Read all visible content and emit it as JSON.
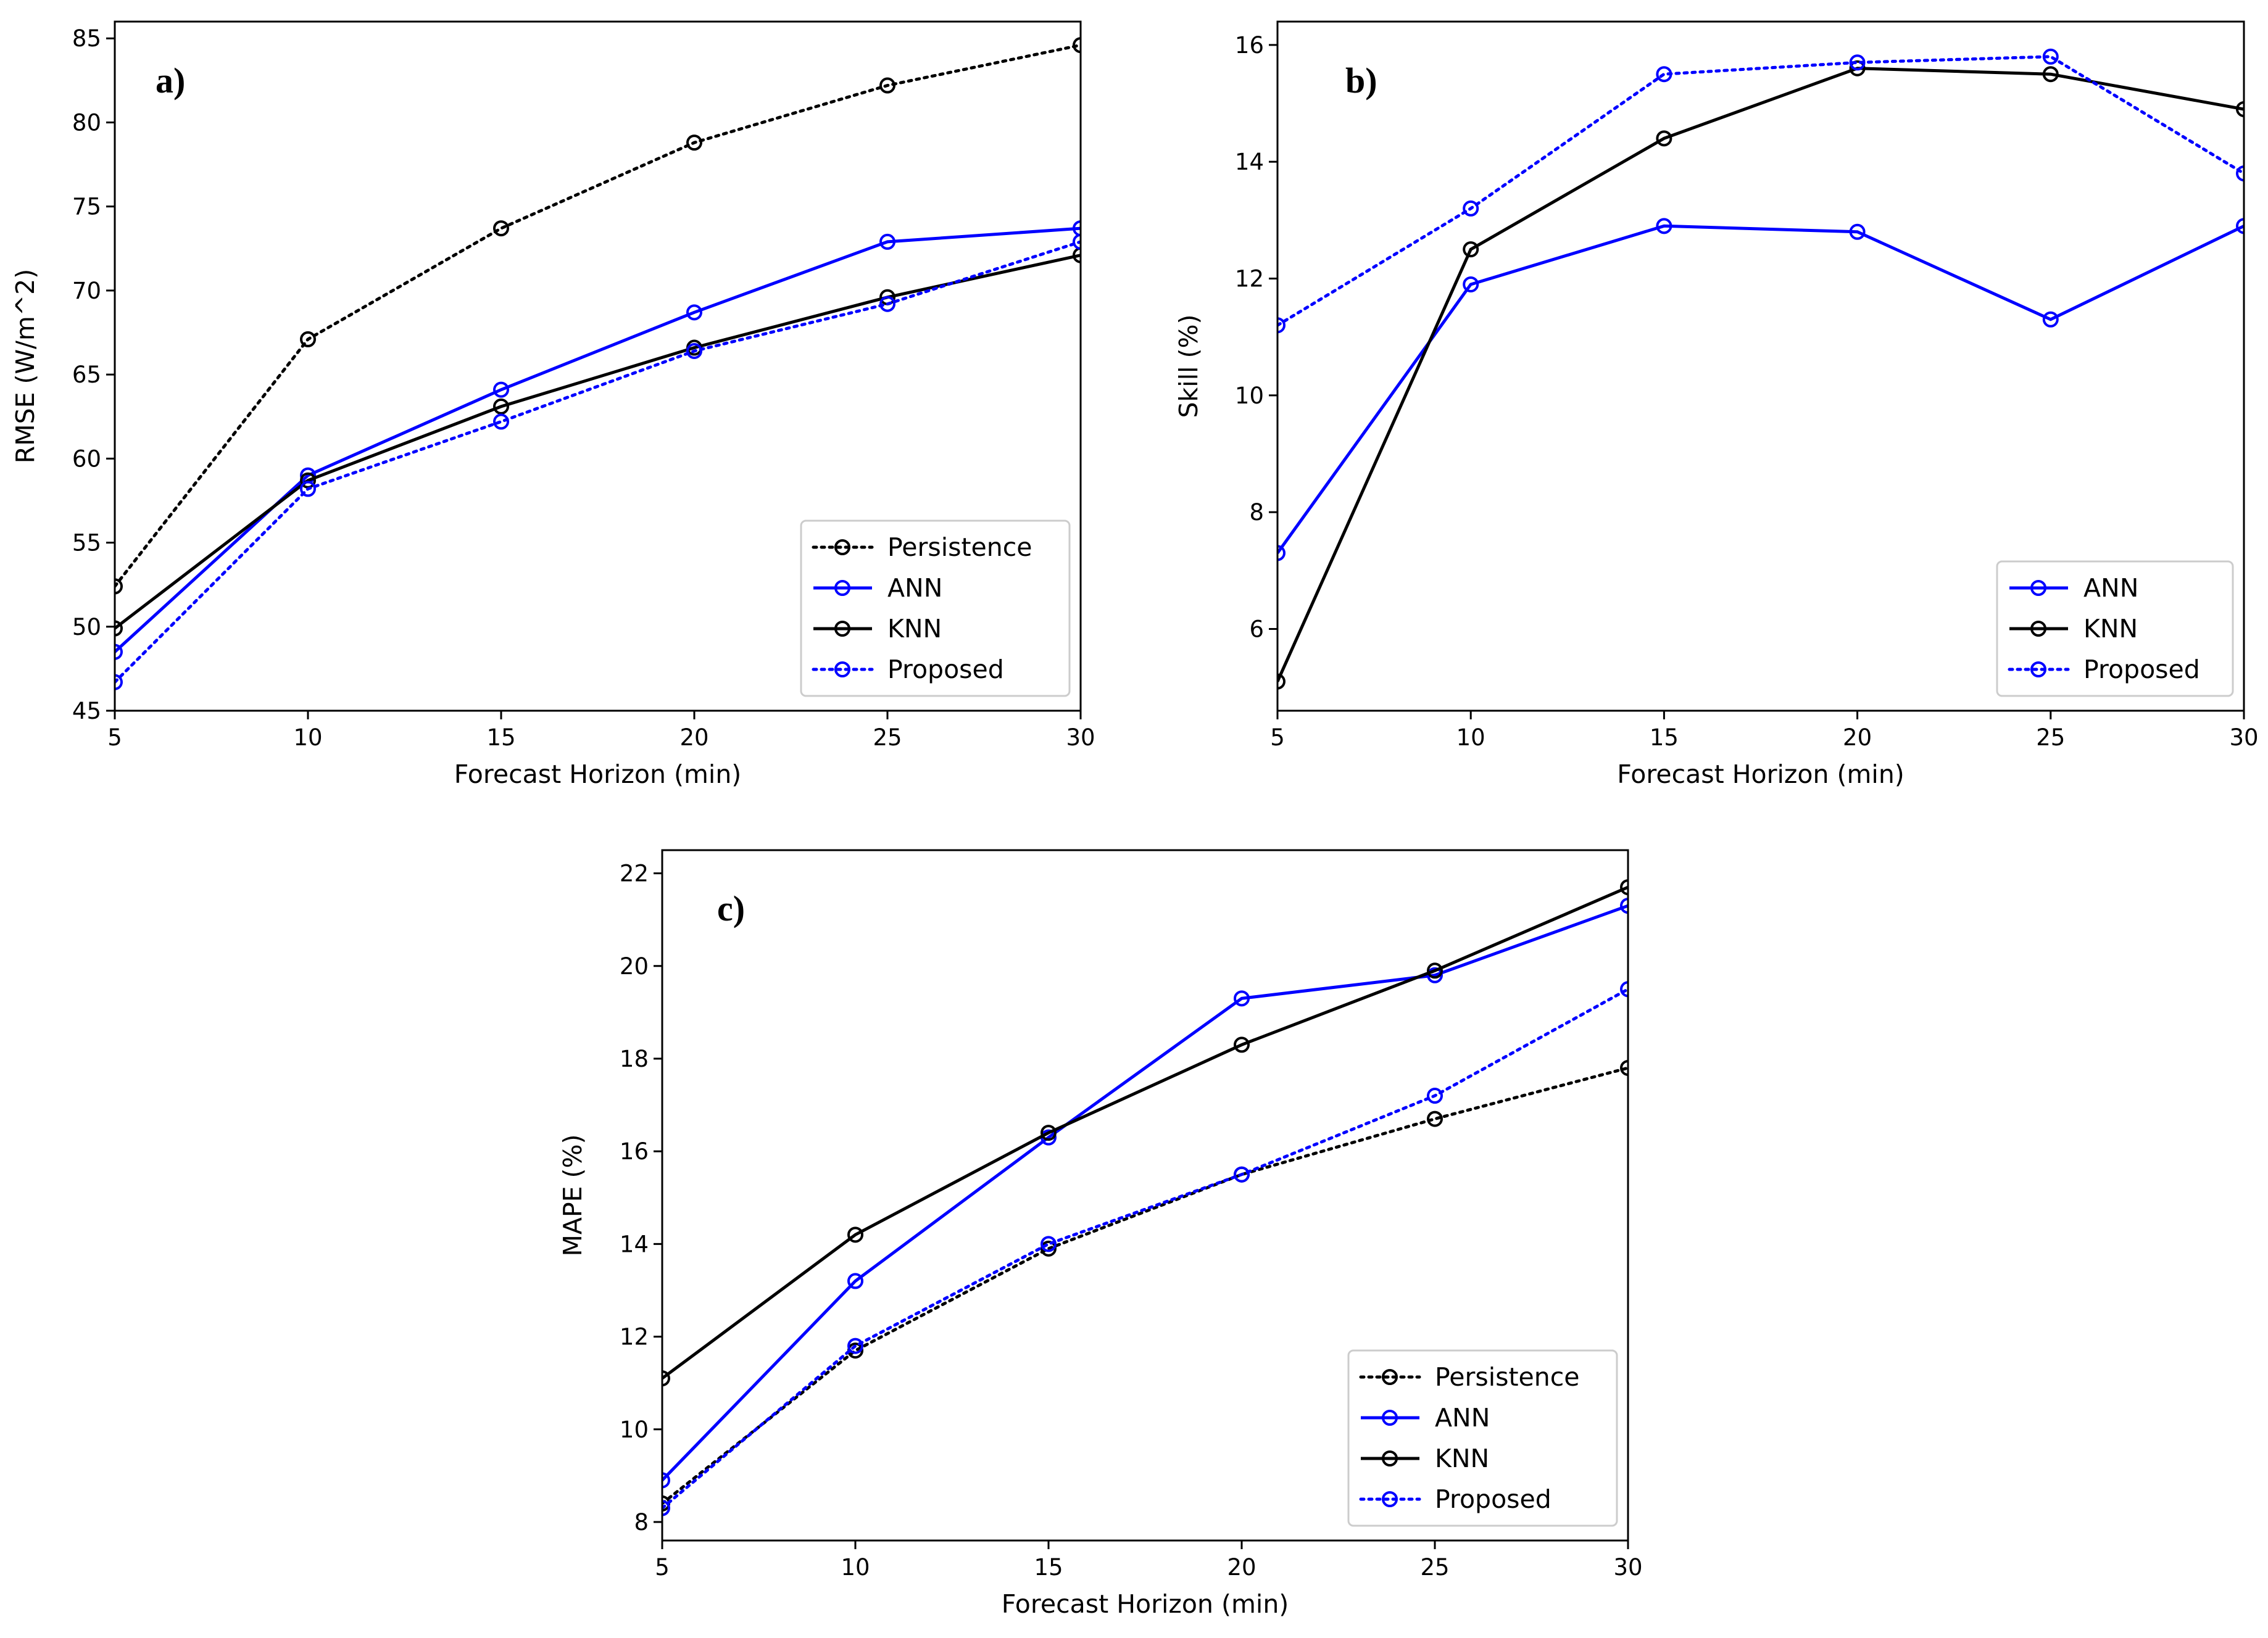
{
  "chart_data": [
    {
      "type": "line",
      "panel": "a)",
      "xlabel": "Forecast Horizon (min)",
      "ylabel": "RMSE (W/m^2)",
      "xlim": [
        5,
        30
      ],
      "ylim": [
        45,
        86
      ],
      "xticks": [
        5,
        10,
        15,
        20,
        25,
        30
      ],
      "yticks": [
        45,
        50,
        55,
        60,
        65,
        70,
        75,
        80,
        85
      ],
      "legend_position": "lower-right",
      "x": [
        5,
        10,
        15,
        20,
        25,
        30
      ],
      "series": [
        {
          "name": "Persistence",
          "color": "#000000",
          "style": "dotted",
          "values": [
            52.4,
            67.1,
            73.7,
            78.8,
            82.2,
            84.6
          ]
        },
        {
          "name": "ANN",
          "color": "#0000ff",
          "style": "solid",
          "values": [
            48.5,
            59.0,
            64.1,
            68.7,
            72.9,
            73.7
          ]
        },
        {
          "name": "KNN",
          "color": "#000000",
          "style": "solid",
          "values": [
            49.9,
            58.7,
            63.1,
            66.6,
            69.6,
            72.1
          ]
        },
        {
          "name": "Proposed",
          "color": "#0000ff",
          "style": "dotted",
          "values": [
            46.7,
            58.2,
            62.2,
            66.4,
            69.2,
            72.9
          ]
        }
      ]
    },
    {
      "type": "line",
      "panel": "b)",
      "xlabel": "Forecast Horizon (min)",
      "ylabel": "Skill (%)",
      "xlim": [
        5,
        30
      ],
      "ylim": [
        4.6,
        16.4
      ],
      "xticks": [
        5,
        10,
        15,
        20,
        25,
        30
      ],
      "yticks": [
        6,
        8,
        10,
        12,
        14,
        16
      ],
      "legend_position": "lower-right",
      "x": [
        5,
        10,
        15,
        20,
        25,
        30
      ],
      "series": [
        {
          "name": "ANN",
          "color": "#0000ff",
          "style": "solid",
          "values": [
            7.3,
            11.9,
            12.9,
            12.8,
            11.3,
            12.9
          ]
        },
        {
          "name": "KNN",
          "color": "#000000",
          "style": "solid",
          "values": [
            5.1,
            12.5,
            14.4,
            15.6,
            15.5,
            14.9
          ]
        },
        {
          "name": "Proposed",
          "color": "#0000ff",
          "style": "dotted",
          "values": [
            11.2,
            13.2,
            15.5,
            15.7,
            15.8,
            13.8
          ]
        }
      ]
    },
    {
      "type": "line",
      "panel": "c)",
      "xlabel": "Forecast Horizon (min)",
      "ylabel": "MAPE (%)",
      "xlim": [
        5,
        30
      ],
      "ylim": [
        7.6,
        22.5
      ],
      "xticks": [
        5,
        10,
        15,
        20,
        25,
        30
      ],
      "yticks": [
        8,
        10,
        12,
        14,
        16,
        18,
        20,
        22
      ],
      "legend_position": "lower-right",
      "x": [
        5,
        10,
        15,
        20,
        25,
        30
      ],
      "series": [
        {
          "name": "Persistence",
          "color": "#000000",
          "style": "dotted",
          "values": [
            8.4,
            11.7,
            13.9,
            15.5,
            16.7,
            17.8
          ]
        },
        {
          "name": "ANN",
          "color": "#0000ff",
          "style": "solid",
          "values": [
            8.9,
            13.2,
            16.3,
            19.3,
            19.8,
            21.3
          ]
        },
        {
          "name": "KNN",
          "color": "#000000",
          "style": "solid",
          "values": [
            11.1,
            14.2,
            16.4,
            18.3,
            19.9,
            21.7
          ]
        },
        {
          "name": "Proposed",
          "color": "#0000ff",
          "style": "dotted",
          "values": [
            8.3,
            11.8,
            14.0,
            15.5,
            17.2,
            19.5
          ]
        }
      ]
    }
  ]
}
